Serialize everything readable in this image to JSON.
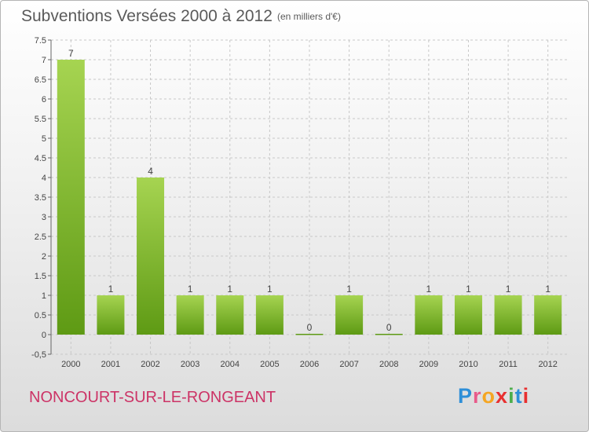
{
  "header": {
    "title": "Subventions Versées 2000 à 2012",
    "subtitle": "(en milliers d'€)"
  },
  "footer": {
    "commune": "NONCOURT-SUR-LE-RONGEANT",
    "logo": {
      "text": "Proxiti",
      "colors": [
        "#2e8fd8",
        "#e85a8a",
        "#f5a623",
        "#e83030",
        "#4cae4c",
        "#2e8fd8",
        "#e83030"
      ]
    }
  },
  "chart_data": {
    "type": "bar",
    "title": "Subventions Versées 2000 à 2012",
    "subtitle": "(en milliers d'€)",
    "categories": [
      "2000",
      "2001",
      "2002",
      "2003",
      "2004",
      "2005",
      "2006",
      "2007",
      "2008",
      "2009",
      "2010",
      "2011",
      "2012"
    ],
    "values": [
      7,
      1,
      4,
      1,
      1,
      1,
      0,
      1,
      0,
      1,
      1,
      1,
      1
    ],
    "data_labels": [
      "7",
      "1",
      "4",
      "1",
      "1",
      "1",
      "0",
      "1",
      "0",
      "1",
      "1",
      "1",
      "1"
    ],
    "ylim": [
      -0.5,
      7.5
    ],
    "yticks": [
      -0.5,
      0,
      0.5,
      1,
      1.5,
      2,
      2.5,
      3,
      3.5,
      4,
      4.5,
      5,
      5.5,
      6,
      6.5,
      7,
      7.5
    ],
    "ytick_labels": [
      "-0,5",
      "0",
      "0.5",
      "1",
      "1.5",
      "2",
      "2.5",
      "3",
      "3.5",
      "4",
      "4.5",
      "5",
      "5.5",
      "6",
      "6.5",
      "7",
      "7.5"
    ],
    "grid": true,
    "colors": {
      "bar_light": "#a6d451",
      "bar_dark": "#5e9a14",
      "grid": "#c8c8c8"
    }
  }
}
